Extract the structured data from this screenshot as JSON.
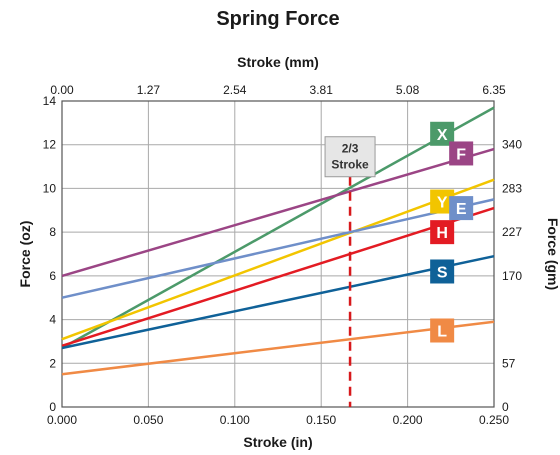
{
  "chart_data": {
    "type": "line",
    "title": "Spring Force",
    "xlabel": "Stroke (in)",
    "ylabel": "Force (oz)",
    "x2label": "Stroke (mm)",
    "y2label": "Force (gm)",
    "xlim": [
      0,
      0.25
    ],
    "ylim": [
      0,
      14
    ],
    "grid": true,
    "x_ticks": [
      "0.000",
      "0.050",
      "0.100",
      "0.150",
      "0.200",
      "0.250"
    ],
    "y_ticks": [
      "0",
      "2",
      "4",
      "6",
      "8",
      "10",
      "12",
      "14"
    ],
    "x2_ticks": [
      "0.00",
      "1.27",
      "2.54",
      "3.81",
      "5.08",
      "6.35"
    ],
    "y2_ticks": [
      {
        "label": "0",
        "at_oz": 0
      },
      {
        "label": "57",
        "at_oz": 2
      },
      {
        "label": "170",
        "at_oz": 6
      },
      {
        "label": "227",
        "at_oz": 8
      },
      {
        "label": "283",
        "at_oz": 10
      },
      {
        "label": "340",
        "at_oz": 12
      }
    ],
    "series": [
      {
        "name": "X",
        "color": "#4c9a6a",
        "x": [
          0,
          0.25
        ],
        "y": [
          2.7,
          13.7
        ],
        "badge": {
          "x": 0.22,
          "y": 12.5
        }
      },
      {
        "name": "F",
        "color": "#9b4585",
        "x": [
          0,
          0.25
        ],
        "y": [
          6.0,
          11.8
        ],
        "badge": {
          "x": 0.231,
          "y": 11.6
        }
      },
      {
        "name": "Y",
        "color": "#f2c500",
        "x": [
          0,
          0.25
        ],
        "y": [
          3.1,
          10.4
        ],
        "badge": {
          "x": 0.22,
          "y": 9.4
        }
      },
      {
        "name": "E",
        "color": "#6f8fc9",
        "x": [
          0,
          0.25
        ],
        "y": [
          5.0,
          9.5
        ],
        "badge": {
          "x": 0.231,
          "y": 9.1
        }
      },
      {
        "name": "H",
        "color": "#e31b23",
        "x": [
          0,
          0.25
        ],
        "y": [
          2.8,
          9.1
        ],
        "badge": {
          "x": 0.22,
          "y": 8.0
        }
      },
      {
        "name": "S",
        "color": "#0f6198",
        "x": [
          0,
          0.25
        ],
        "y": [
          2.7,
          6.9
        ],
        "badge": {
          "x": 0.22,
          "y": 6.2
        }
      },
      {
        "name": "L",
        "color": "#f08a45",
        "x": [
          0,
          0.25
        ],
        "y": [
          1.5,
          3.9
        ],
        "badge": {
          "x": 0.22,
          "y": 3.5
        }
      }
    ],
    "annotation": {
      "label_line1": "2/3",
      "label_line2": "Stroke",
      "x": 0.1667,
      "box_center_y": 11.45,
      "color": "#d7191c"
    }
  }
}
